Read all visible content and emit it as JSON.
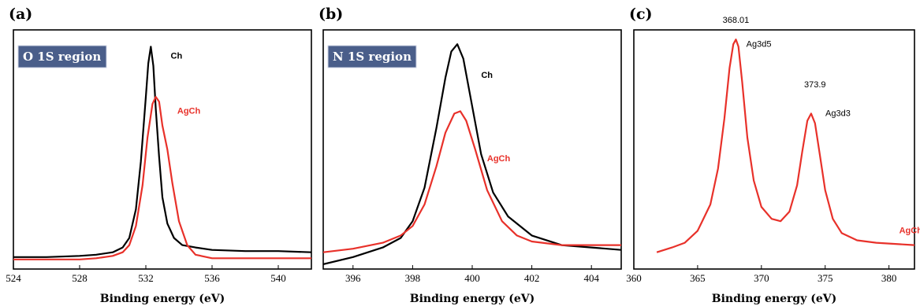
{
  "chart_data": [
    {
      "type": "line",
      "panel_label": "(a)",
      "region_label": "O 1S region",
      "region_label_colors": {
        "background": "#4a5e8a",
        "text": "#ffffff"
      },
      "xlabel": "Binding energy (eV)",
      "ylabel": "",
      "xlim": [
        524,
        542
      ],
      "ylim": [
        0,
        1
      ],
      "xticks": [
        524,
        528,
        532,
        536,
        540
      ],
      "series": [
        {
          "name": "Ch",
          "color": "#000000",
          "x": [
            524,
            526,
            528,
            529,
            530,
            530.6,
            531.0,
            531.4,
            531.7,
            532.0,
            532.15,
            532.3,
            532.45,
            532.6,
            532.8,
            533.0,
            533.3,
            533.7,
            534.2,
            535,
            536,
            538,
            540,
            542
          ],
          "y": [
            0.05,
            0.05,
            0.055,
            0.06,
            0.07,
            0.09,
            0.13,
            0.25,
            0.45,
            0.72,
            0.86,
            0.93,
            0.85,
            0.67,
            0.47,
            0.3,
            0.19,
            0.13,
            0.1,
            0.09,
            0.08,
            0.075,
            0.075,
            0.07
          ]
        },
        {
          "name": "AgCh",
          "color": "#e8312a",
          "x": [
            524,
            526,
            528,
            529,
            530,
            530.6,
            531.0,
            531.4,
            531.8,
            532.1,
            532.4,
            532.6,
            532.8,
            533.0,
            533.3,
            533.6,
            534.0,
            534.5,
            535,
            536,
            538,
            540,
            542
          ],
          "y": [
            0.04,
            0.04,
            0.04,
            0.045,
            0.055,
            0.07,
            0.1,
            0.18,
            0.35,
            0.55,
            0.69,
            0.72,
            0.7,
            0.6,
            0.5,
            0.36,
            0.2,
            0.1,
            0.06,
            0.045,
            0.045,
            0.045,
            0.045
          ]
        }
      ],
      "labels": [
        {
          "text": "Ch",
          "x": 533.5,
          "y": 0.88,
          "color": "#000000"
        },
        {
          "text": "AgCh",
          "x": 533.9,
          "y": 0.65,
          "color": "#e8312a"
        }
      ]
    },
    {
      "type": "line",
      "panel_label": "(b)",
      "region_label": "N 1S region",
      "region_label_colors": {
        "background": "#4a5e8a",
        "text": "#ffffff"
      },
      "xlabel": "Binding energy (eV)",
      "ylabel": "",
      "xlim": [
        395,
        405
      ],
      "ylim": [
        0,
        1
      ],
      "xticks": [
        396,
        398,
        400,
        402,
        404
      ],
      "series": [
        {
          "name": "Ch",
          "color": "#000000",
          "x": [
            395,
            396,
            397,
            397.6,
            398,
            398.4,
            398.8,
            399.1,
            399.3,
            399.5,
            399.7,
            400,
            400.3,
            400.7,
            401.2,
            402,
            403,
            404,
            405
          ],
          "y": [
            0.02,
            0.05,
            0.09,
            0.13,
            0.2,
            0.34,
            0.59,
            0.8,
            0.91,
            0.94,
            0.88,
            0.68,
            0.48,
            0.32,
            0.22,
            0.14,
            0.1,
            0.09,
            0.08
          ]
        },
        {
          "name": "AgCh",
          "color": "#e8312a",
          "x": [
            395,
            396,
            397,
            397.6,
            398,
            398.4,
            398.8,
            399.1,
            399.4,
            399.6,
            399.8,
            400.1,
            400.5,
            401,
            401.5,
            402,
            403,
            404,
            405
          ],
          "y": [
            0.07,
            0.085,
            0.11,
            0.14,
            0.18,
            0.27,
            0.43,
            0.57,
            0.65,
            0.66,
            0.62,
            0.5,
            0.33,
            0.2,
            0.14,
            0.115,
            0.1,
            0.1,
            0.1
          ]
        }
      ],
      "labels": [
        {
          "text": "Ch",
          "x": 400.3,
          "y": 0.8,
          "color": "#000000"
        },
        {
          "text": "AgCh",
          "x": 400.5,
          "y": 0.45,
          "color": "#e8312a"
        }
      ]
    },
    {
      "type": "line",
      "panel_label": "(c)",
      "xlabel": "Binding energy (eV)",
      "ylabel": "",
      "xlim": [
        360,
        382
      ],
      "ylim": [
        0,
        1
      ],
      "xticks": [
        360,
        365,
        370,
        375,
        380
      ],
      "series": [
        {
          "name": "AgCh",
          "color": "#e8312a",
          "x": [
            361.8,
            363,
            364,
            365,
            366,
            366.6,
            367.1,
            367.5,
            367.8,
            368.0,
            368.2,
            368.5,
            368.9,
            369.4,
            370,
            370.8,
            371.5,
            372.2,
            372.8,
            373.2,
            373.6,
            373.9,
            374.2,
            374.6,
            375,
            375.6,
            376.3,
            377.5,
            379,
            382
          ],
          "y": [
            0.07,
            0.09,
            0.11,
            0.16,
            0.27,
            0.42,
            0.63,
            0.84,
            0.94,
            0.96,
            0.93,
            0.78,
            0.55,
            0.37,
            0.26,
            0.21,
            0.2,
            0.24,
            0.35,
            0.49,
            0.62,
            0.65,
            0.61,
            0.47,
            0.33,
            0.21,
            0.15,
            0.12,
            0.11,
            0.1
          ]
        }
      ],
      "annotations": [
        {
          "text": "368.01",
          "x": 368.0,
          "y": 1.03
        },
        {
          "text": "Ag3d5",
          "x": 369.8,
          "y": 0.93
        },
        {
          "text": "373.9",
          "x": 374.2,
          "y": 0.76
        },
        {
          "text": "Ag3d3",
          "x": 376.0,
          "y": 0.64
        }
      ],
      "labels": [
        {
          "text": "AgCh",
          "x": 380.8,
          "y": 0.15,
          "color": "#e8312a"
        }
      ]
    }
  ]
}
